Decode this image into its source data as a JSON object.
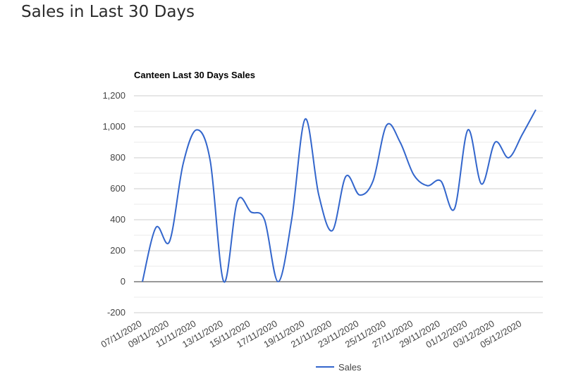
{
  "page": {
    "heading": "Sales in Last 30 Days"
  },
  "colors": {
    "series": "#3366cc",
    "grid": "#cccccc",
    "minor_grid": "#ebebeb",
    "baseline": "#333333",
    "axis_text": "#444444",
    "heading": "#2b2b2b"
  },
  "chart_data": {
    "type": "line",
    "title": "Canteen Last 30 Days Sales",
    "xlabel": "",
    "ylabel": "",
    "ylim": [
      -200,
      1200
    ],
    "y_ticks": [
      -200,
      0,
      200,
      400,
      600,
      800,
      1000,
      1200
    ],
    "y_tick_labels": [
      "-200",
      "0",
      "200",
      "400",
      "600",
      "800",
      "1,000",
      "1,200"
    ],
    "grid": true,
    "smooth": true,
    "legend": "bottom",
    "x_tick_labels": [
      "07/11/2020",
      "09/11/2020",
      "11/11/2020",
      "13/11/2020",
      "15/11/2020",
      "17/11/2020",
      "19/11/2020",
      "21/11/2020",
      "23/11/2020",
      "25/11/2020",
      "27/11/2020",
      "29/11/2020",
      "01/12/2020",
      "03/12/2020",
      "05/12/2020"
    ],
    "x": [
      "07/11/2020",
      "08/11/2020",
      "09/11/2020",
      "10/11/2020",
      "11/11/2020",
      "12/11/2020",
      "13/11/2020",
      "14/11/2020",
      "15/11/2020",
      "16/11/2020",
      "17/11/2020",
      "18/11/2020",
      "19/11/2020",
      "20/11/2020",
      "21/11/2020",
      "22/11/2020",
      "23/11/2020",
      "24/11/2020",
      "25/11/2020",
      "26/11/2020",
      "27/11/2020",
      "28/11/2020",
      "29/11/2020",
      "30/11/2020",
      "01/12/2020",
      "02/12/2020",
      "03/12/2020",
      "04/12/2020",
      "05/12/2020",
      "06/12/2020"
    ],
    "series": [
      {
        "name": "Sales",
        "values": [
          0,
          350,
          260,
          760,
          980,
          780,
          0,
          520,
          450,
          400,
          0,
          400,
          1050,
          560,
          330,
          680,
          560,
          650,
          1010,
          900,
          690,
          620,
          650,
          470,
          980,
          630,
          900,
          800,
          950,
          1110
        ]
      }
    ]
  }
}
